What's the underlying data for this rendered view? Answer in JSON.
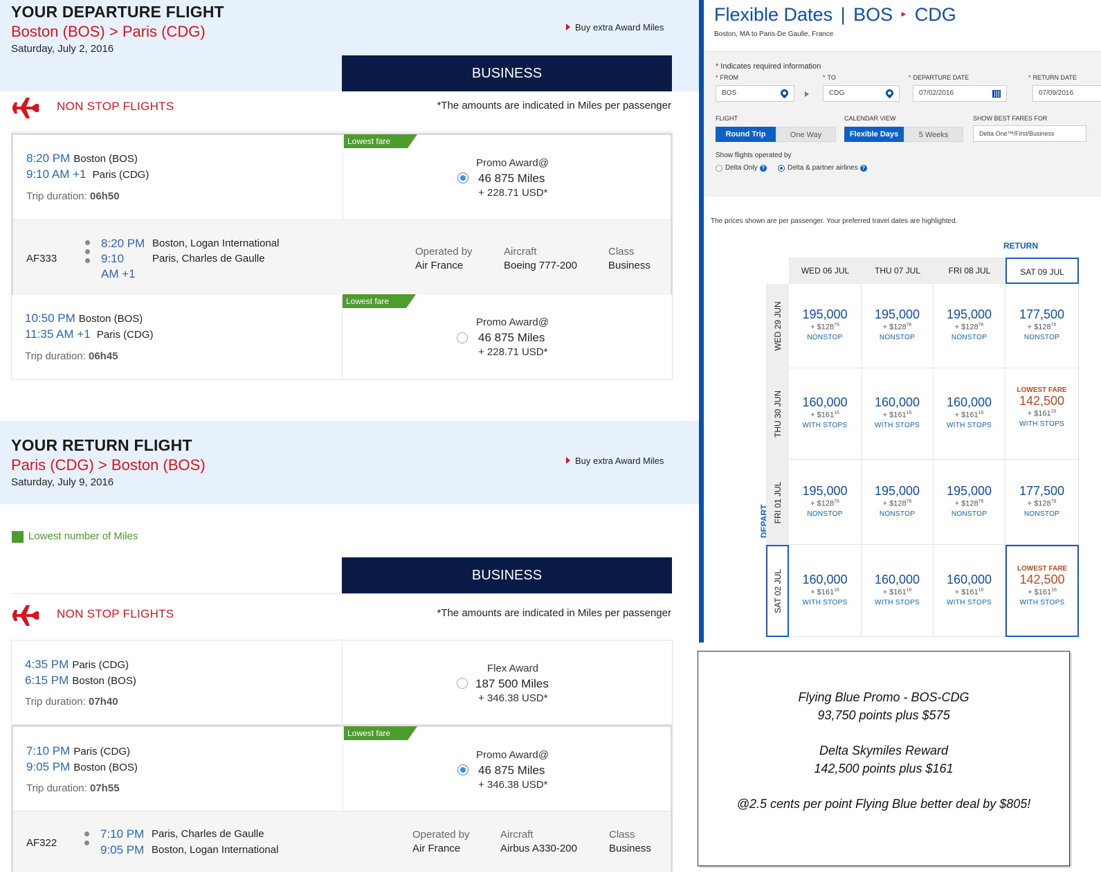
{
  "departure": {
    "heading": "YOUR DEPARTURE FLIGHT",
    "route_from": "Boston",
    "route_from_code": "(BOS)",
    "route_sep": ">",
    "route_to": "Paris",
    "route_to_code": "(CDG)",
    "date": "Saturday, July 2, 2016",
    "buy_link": "Buy extra Award Miles",
    "cabin": "BUSINESS",
    "nonstop_label": "NON STOP FLIGHTS",
    "amounts_note": "*The amounts are indicated in Miles per passenger",
    "flights": [
      {
        "lowest_tag": "Lowest fare",
        "dep_time": "8:20 PM",
        "dep_place": "Boston (BOS)",
        "arr_time": "9:10 AM  +1",
        "arr_place": "Paris (CDG)",
        "duration_label": "Trip duration:",
        "duration": "06h50",
        "fare_type": "Promo Award@",
        "miles": "46 875 Miles",
        "usd": "+ 228.71 USD*",
        "selected": true,
        "detail": {
          "flight_no": "AF333",
          "dep_time": "8:20 PM",
          "dep_place": "Boston, Logan International",
          "arr_time_1": "9:10",
          "arr_time_2": "AM +1",
          "arr_place": "Paris, Charles de Gaulle",
          "operated_label": "Operated by",
          "operated": "Air France",
          "aircraft_label": "Aircraft",
          "aircraft": "Boeing 777-200",
          "class_label": "Class",
          "class": "Business"
        }
      },
      {
        "lowest_tag": "Lowest fare",
        "dep_time": "10:50 PM",
        "dep_place": "Boston (BOS)",
        "arr_time": "11:35 AM  +1",
        "arr_place": "Paris (CDG)",
        "duration_label": "Trip duration:",
        "duration": "06h45",
        "fare_type": "Promo Award@",
        "miles": "46 875 Miles",
        "usd": "+ 228.71 USD*",
        "selected": false
      }
    ]
  },
  "return": {
    "heading": "YOUR RETURN FLIGHT",
    "route_from": "Paris",
    "route_from_code": "(CDG)",
    "route_sep": ">",
    "route_to": "Boston",
    "route_to_code": "(BOS)",
    "date": "Saturday, July 9, 2016",
    "buy_link": "Buy extra Award Miles",
    "legend": "Lowest number of Miles",
    "cabin": "BUSINESS",
    "nonstop_label": "NON STOP FLIGHTS",
    "amounts_note": "*The amounts are indicated in Miles per passenger",
    "flights": [
      {
        "dep_time": "4:35 PM",
        "dep_place": "Paris (CDG)",
        "arr_time": "6:15 PM",
        "arr_place": "Boston (BOS)",
        "duration_label": "Trip duration:",
        "duration": "07h40",
        "fare_type": "Flex Award",
        "miles": "187 500 Miles",
        "usd": "+ 346.38 USD*",
        "selected": false
      },
      {
        "lowest_tag": "Lowest fare",
        "dep_time": "7:10 PM",
        "dep_place": "Paris (CDG)",
        "arr_time": "9:05 PM",
        "arr_place": "Boston (BOS)",
        "duration_label": "Trip duration:",
        "duration": "07h55",
        "fare_type": "Promo Award@",
        "miles": "46 875 Miles",
        "usd": "+ 346.38 USD*",
        "selected": true,
        "detail": {
          "flight_no": "AF322",
          "dep_time": "7:10 PM",
          "dep_place": "Paris, Charles de Gaulle",
          "arr_time": "9:05 PM",
          "arr_place": "Boston, Logan International",
          "operated_label": "Operated by",
          "operated": "Air France",
          "aircraft_label": "Aircraft",
          "aircraft": "Airbus A330-200",
          "class_label": "Class",
          "class": "Business"
        }
      }
    ]
  },
  "flex": {
    "title_left": "Flexible Dates",
    "title_sep": "|",
    "title_from": "BOS",
    "title_arrow": "▸",
    "title_to": "CDG",
    "subtitle": "Boston, MA to Paris-De Gaulle, France",
    "required_note": "Indicates required information",
    "req_mark": "*",
    "from_label": "FROM",
    "from_value": "BOS",
    "to_label": "TO",
    "to_value": "CDG",
    "dep_label": "DEPARTURE DATE",
    "dep_value": "07/02/2016",
    "ret_label": "RETURN DATE",
    "ret_value": "07/09/2016",
    "flight_label": "FLIGHT",
    "round_trip": "Round Trip",
    "one_way": "One Way",
    "calendar_label": "CALENDAR VIEW",
    "flexible_days": "Flexible Days",
    "five_weeks": "5 Weeks",
    "best_fares_label": "SHOW BEST FARES FOR",
    "best_fares_value": "Delta One™/First/Business",
    "operated_label": "Show flights operated by",
    "delta_only": "Delta Only",
    "delta_partner": "Delta & partner airlines",
    "prices_note": "The prices shown are per passenger. Your preferred travel dates are highlighted.",
    "return_label": "RETURN",
    "depart_label": "DEPART",
    "columns": [
      "WED 06 JUL",
      "THU 07 JUL",
      "FRI 08 JUL",
      "SAT 09 JUL"
    ],
    "rows": [
      "WED 29 JUN",
      "THU 30 JUN",
      "FRI 01 JUL",
      "SAT 02 JUL"
    ],
    "lowest_label": "LOWEST FARE",
    "grid": [
      [
        {
          "miles": "195,000",
          "usd": "128",
          "cents": "76",
          "kind": "NONSTOP"
        },
        {
          "miles": "195,000",
          "usd": "128",
          "cents": "76",
          "kind": "NONSTOP"
        },
        {
          "miles": "195,000",
          "usd": "128",
          "cents": "76",
          "kind": "NONSTOP"
        },
        {
          "miles": "177,500",
          "usd": "128",
          "cents": "76",
          "kind": "NONSTOP"
        }
      ],
      [
        {
          "miles": "160,000",
          "usd": "161",
          "cents": "16",
          "kind": "WITH STOPS"
        },
        {
          "miles": "160,000",
          "usd": "161",
          "cents": "16",
          "kind": "WITH STOPS"
        },
        {
          "miles": "160,000",
          "usd": "161",
          "cents": "16",
          "kind": "WITH STOPS"
        },
        {
          "miles": "142,500",
          "usd": "161",
          "cents": "16",
          "kind": "WITH STOPS",
          "lowest": true
        }
      ],
      [
        {
          "miles": "195,000",
          "usd": "128",
          "cents": "76",
          "kind": "NONSTOP"
        },
        {
          "miles": "195,000",
          "usd": "128",
          "cents": "76",
          "kind": "NONSTOP"
        },
        {
          "miles": "195,000",
          "usd": "128",
          "cents": "76",
          "kind": "NONSTOP"
        },
        {
          "miles": "177,500",
          "usd": "128",
          "cents": "76",
          "kind": "NONSTOP"
        }
      ],
      [
        {
          "miles": "160,000",
          "usd": "161",
          "cents": "16",
          "kind": "WITH STOPS"
        },
        {
          "miles": "160,000",
          "usd": "161",
          "cents": "16",
          "kind": "WITH STOPS"
        },
        {
          "miles": "160,000",
          "usd": "161",
          "cents": "16",
          "kind": "WITH STOPS"
        },
        {
          "miles": "142,500",
          "usd": "161",
          "cents": "16",
          "kind": "WITH STOPS",
          "lowest": true,
          "selected": true
        }
      ]
    ]
  },
  "note": {
    "line1": "Flying Blue Promo - BOS-CDG",
    "line2": "93,750 points plus $575",
    "line3": "Delta Skymiles Reward",
    "line4": "142,500 points plus $161",
    "line5": "@2.5 cents per point Flying Blue better deal by $805!"
  },
  "colors": {
    "brand_red": "#d8141c",
    "navy": "#0b1b47",
    "link_blue": "#2b67b8",
    "delta_blue": "#0d4fa4",
    "green": "#4d9c2d",
    "band_blue": "#e6f1fb"
  }
}
